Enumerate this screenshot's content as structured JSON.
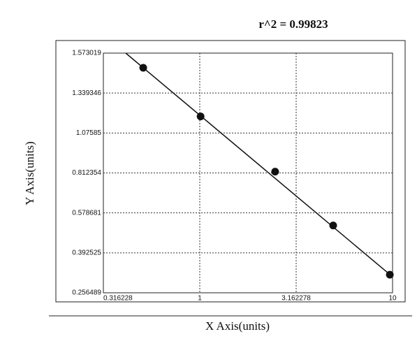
{
  "chart_data": {
    "type": "scatter",
    "title": "r^2 = 0.99823",
    "x_label": "X Axis(units)",
    "y_label": "Y Axis(units)",
    "x_scale": "log",
    "xlim": [
      0.316228,
      10
    ],
    "xticks": [
      0.316228,
      1,
      3.162278,
      10
    ],
    "ylim": [
      0.256489,
      1.573019
    ],
    "yticks": [
      0.256489,
      0.392525,
      0.578681,
      0.812354,
      1.07585,
      1.339346,
      1.573019
    ],
    "grid": true,
    "series": [
      {
        "color": "#111111",
        "x": [
          0.509,
          1.01,
          2.46,
          4.92,
          9.68
        ],
        "values": [
          1.487,
          1.185,
          0.821,
          0.52,
          0.318
        ]
      }
    ],
    "fit_line": {
      "color": "#111111",
      "x": [
        0.413,
        10
      ],
      "values": [
        1.573,
        0.311
      ]
    }
  }
}
